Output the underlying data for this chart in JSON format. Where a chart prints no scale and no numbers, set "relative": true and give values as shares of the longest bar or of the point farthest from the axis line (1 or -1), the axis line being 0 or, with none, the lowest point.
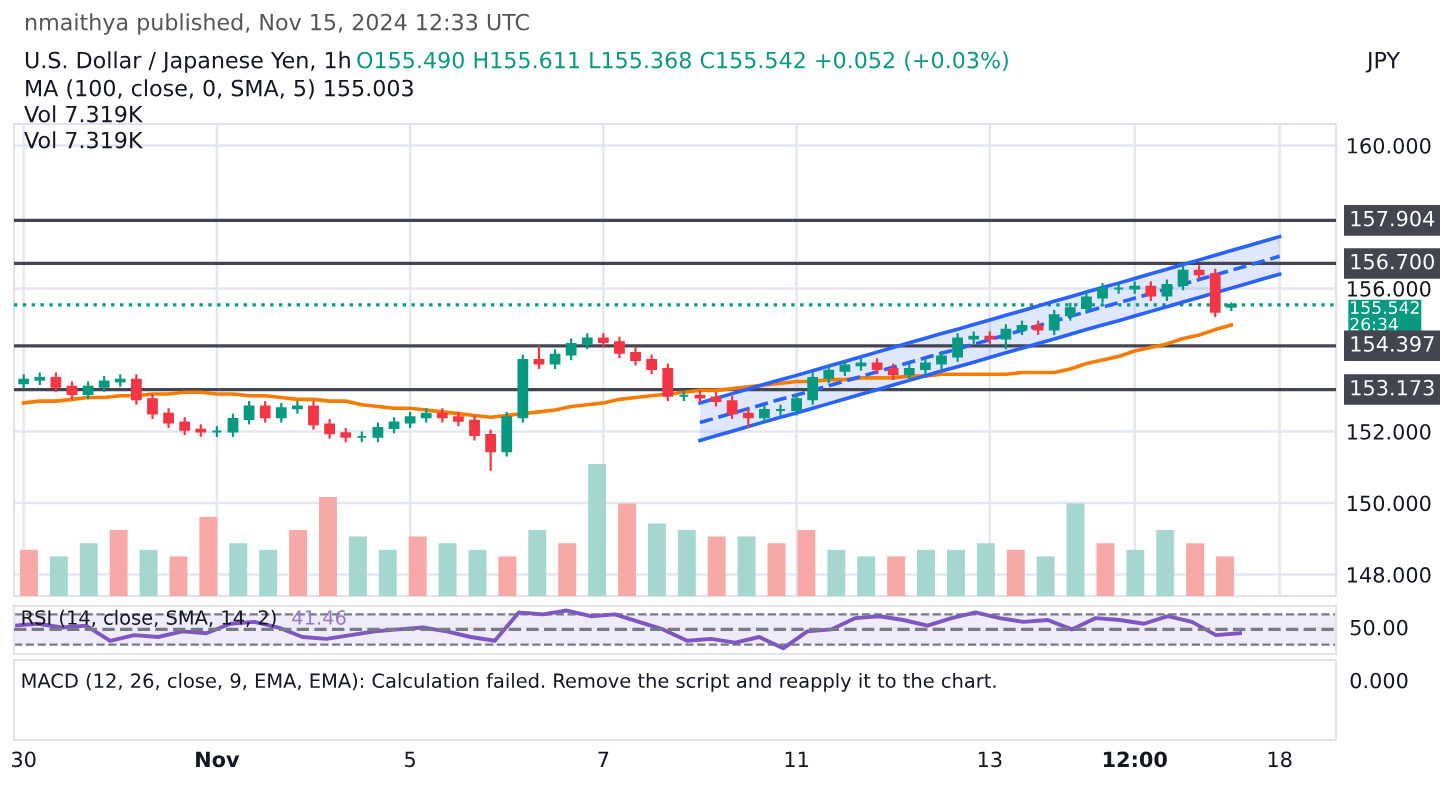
{
  "chart_data": [
    {
      "type": "candlestick",
      "title": "U.S. Dollar / Japanese Yen, 1h",
      "annotations": [
        "nmaithya published, Nov 15, 2024 12:33 UTC",
        "O155.490 H155.611 L155.368 C155.542 +0.052 (+0.03%)",
        "MA (100, close, 0, SMA, 5) 155.003",
        "Vol 7.319K",
        "Vol 7.319K",
        "JPY"
      ],
      "categories": [
        "30",
        null,
        null,
        null,
        null,
        null,
        null,
        null,
        null,
        null,
        null,
        null,
        "Nov",
        null,
        null,
        null,
        null,
        null,
        null,
        null,
        null,
        null,
        null,
        null,
        "5",
        null,
        null,
        null,
        null,
        null,
        null,
        null,
        null,
        null,
        null,
        null,
        "7",
        null,
        null,
        null,
        null,
        null,
        null,
        null,
        null,
        null,
        null,
        null,
        "11",
        null,
        null,
        null,
        null,
        null,
        null,
        null,
        null,
        null,
        null,
        null,
        "13",
        null,
        null,
        null,
        null,
        null,
        null,
        null,
        null,
        "12:00",
        null,
        null,
        null,
        null,
        null,
        null,
        null,
        null,
        "18",
        null,
        null,
        null
      ],
      "ohlc": [
        [
          153.35,
          153.6,
          153.2,
          153.45
        ],
        [
          153.45,
          153.65,
          153.3,
          153.5
        ],
        [
          153.5,
          153.65,
          153.1,
          153.25
        ],
        [
          153.25,
          153.4,
          152.9,
          153.05
        ],
        [
          153.05,
          153.4,
          152.9,
          153.25
        ],
        [
          153.25,
          153.55,
          153.1,
          153.4
        ],
        [
          153.4,
          153.6,
          153.25,
          153.45
        ],
        [
          153.45,
          153.6,
          152.75,
          152.9
        ],
        [
          152.9,
          153.05,
          152.35,
          152.5
        ],
        [
          152.5,
          152.65,
          152.1,
          152.25
        ],
        [
          152.25,
          152.4,
          151.9,
          152.05
        ],
        [
          152.05,
          152.2,
          151.85,
          152.0
        ],
        [
          152.0,
          152.15,
          151.85,
          152.0
        ],
        [
          152.0,
          152.5,
          151.85,
          152.35
        ],
        [
          152.35,
          152.85,
          152.2,
          152.7
        ],
        [
          152.7,
          152.85,
          152.25,
          152.4
        ],
        [
          152.4,
          152.8,
          152.25,
          152.65
        ],
        [
          152.65,
          152.85,
          152.5,
          152.7
        ],
        [
          152.7,
          152.85,
          152.05,
          152.2
        ],
        [
          152.2,
          152.35,
          151.8,
          151.95
        ],
        [
          151.95,
          152.1,
          151.7,
          151.85
        ],
        [
          151.85,
          152.0,
          151.7,
          151.85
        ],
        [
          151.85,
          152.25,
          151.7,
          152.1
        ],
        [
          152.1,
          152.4,
          151.95,
          152.25
        ],
        [
          152.25,
          152.55,
          152.1,
          152.4
        ],
        [
          152.4,
          152.65,
          152.25,
          152.5
        ],
        [
          152.5,
          152.65,
          152.25,
          152.4
        ],
        [
          152.4,
          152.55,
          152.15,
          152.3
        ],
        [
          152.3,
          152.45,
          151.75,
          151.9
        ],
        [
          151.9,
          152.05,
          150.9,
          151.45
        ],
        [
          151.45,
          152.55,
          151.3,
          152.4
        ],
        [
          152.4,
          154.15,
          152.25,
          154.0
        ],
        [
          154.0,
          154.4,
          153.75,
          153.9
        ],
        [
          153.9,
          154.3,
          153.75,
          154.15
        ],
        [
          154.15,
          154.6,
          154.0,
          154.45
        ],
        [
          154.45,
          154.75,
          154.3,
          154.6
        ],
        [
          154.6,
          154.75,
          154.35,
          154.5
        ],
        [
          154.5,
          154.65,
          154.05,
          154.2
        ],
        [
          154.2,
          154.35,
          153.85,
          154.0
        ],
        [
          154.0,
          154.15,
          153.6,
          153.75
        ],
        [
          153.75,
          153.9,
          152.85,
          153.0
        ],
        [
          153.0,
          153.15,
          152.85,
          153.0
        ],
        [
          153.0,
          153.15,
          152.8,
          152.95
        ],
        [
          152.95,
          153.1,
          152.7,
          152.85
        ],
        [
          152.85,
          153.0,
          152.35,
          152.5
        ],
        [
          152.5,
          152.65,
          152.1,
          152.4
        ],
        [
          152.4,
          152.75,
          152.25,
          152.6
        ],
        [
          152.6,
          152.75,
          152.45,
          152.6
        ],
        [
          152.6,
          153.05,
          152.45,
          152.9
        ],
        [
          152.9,
          153.65,
          152.75,
          153.5
        ],
        [
          153.5,
          153.85,
          153.35,
          153.7
        ],
        [
          153.7,
          154.0,
          153.55,
          153.85
        ],
        [
          153.85,
          154.05,
          153.7,
          153.9
        ],
        [
          153.9,
          154.05,
          153.6,
          153.75
        ],
        [
          153.75,
          153.9,
          153.45,
          153.6
        ],
        [
          153.6,
          153.9,
          153.45,
          153.75
        ],
        [
          153.75,
          154.05,
          153.6,
          153.9
        ],
        [
          153.9,
          154.25,
          153.75,
          154.1
        ],
        [
          154.1,
          154.75,
          153.95,
          154.6
        ],
        [
          154.6,
          154.8,
          154.45,
          154.65
        ],
        [
          154.65,
          154.8,
          154.45,
          154.6
        ],
        [
          154.6,
          155.0,
          154.3,
          154.85
        ],
        [
          154.85,
          155.1,
          154.7,
          154.95
        ],
        [
          154.95,
          155.1,
          154.7,
          154.85
        ],
        [
          154.85,
          155.4,
          154.7,
          155.25
        ],
        [
          155.25,
          155.6,
          155.1,
          155.45
        ],
        [
          155.45,
          155.9,
          155.3,
          155.75
        ],
        [
          155.75,
          156.15,
          155.6,
          156.0
        ],
        [
          156.0,
          156.15,
          155.85,
          156.0
        ],
        [
          156.0,
          156.2,
          155.85,
          156.05
        ],
        [
          156.05,
          156.2,
          155.65,
          155.8
        ],
        [
          155.8,
          156.25,
          155.65,
          156.1
        ],
        [
          156.1,
          156.65,
          155.95,
          156.5
        ],
        [
          156.5,
          156.65,
          156.25,
          156.4
        ],
        [
          156.4,
          156.55,
          155.2,
          155.35
        ],
        [
          155.49,
          155.611,
          155.368,
          155.542
        ],
        null,
        null,
        null,
        null,
        null,
        null
      ],
      "series": [
        {
          "type": "line",
          "color": "#f57c00",
          "values": [
            152.8,
            152.85,
            152.85,
            152.9,
            152.95,
            152.95,
            153.0,
            153.0,
            153.05,
            153.05,
            153.1,
            153.1,
            153.05,
            153.05,
            153.0,
            153.0,
            152.95,
            152.9,
            152.9,
            152.85,
            152.85,
            152.75,
            152.7,
            152.65,
            152.65,
            152.6,
            152.55,
            152.5,
            152.45,
            152.4,
            152.45,
            152.5,
            152.55,
            152.6,
            152.7,
            152.75,
            152.8,
            152.9,
            152.95,
            153.0,
            153.05,
            153.1,
            153.15,
            153.15,
            153.2,
            153.25,
            153.3,
            153.35,
            153.4,
            153.4,
            153.45,
            153.45,
            153.5,
            153.5,
            153.5,
            153.55,
            153.55,
            153.6,
            153.6,
            153.6,
            153.6,
            153.6,
            153.65,
            153.65,
            153.65,
            153.75,
            153.9,
            154.0,
            154.1,
            154.25,
            154.35,
            154.45,
            154.6,
            154.7,
            154.85,
            154.98,
            null,
            null,
            null,
            null,
            null,
            null
          ]
        },
        {
          "type": "line",
          "color": "#2962ff",
          "line_style": "dashed",
          "values": [
            null,
            null,
            null,
            null,
            null,
            null,
            null,
            null,
            null,
            null,
            null,
            null,
            null,
            null,
            null,
            null,
            null,
            null,
            null,
            null,
            null,
            null,
            null,
            null,
            null,
            null,
            null,
            null,
            null,
            null,
            null,
            null,
            null,
            null,
            null,
            null,
            null,
            null,
            null,
            null,
            null,
            null,
            152.25,
            152.38,
            152.51,
            152.64,
            152.77,
            152.9,
            153.02,
            153.15,
            153.28,
            153.41,
            153.54,
            153.67,
            153.8,
            153.93,
            154.06,
            154.19,
            154.31,
            154.44,
            154.57,
            154.7,
            154.83,
            154.96,
            155.09,
            155.22,
            155.35,
            155.48,
            155.6,
            155.73,
            155.86,
            155.99,
            156.12,
            156.25,
            156.38,
            156.51,
            156.64,
            156.77,
            156.9,
            null,
            null,
            null
          ],
          "lower": [
            null,
            null,
            null,
            null,
            null,
            null,
            null,
            null,
            null,
            null,
            null,
            null,
            null,
            null,
            null,
            null,
            null,
            null,
            null,
            null,
            null,
            null,
            null,
            null,
            null,
            null,
            null,
            null,
            null,
            null,
            null,
            null,
            null,
            null,
            null,
            null,
            null,
            null,
            null,
            null,
            null,
            null,
            151.75,
            151.88,
            152.01,
            152.14,
            152.27,
            152.4,
            152.52,
            152.65,
            152.78,
            152.91,
            153.04,
            153.17,
            153.3,
            153.43,
            153.56,
            153.69,
            153.81,
            153.94,
            154.07,
            154.2,
            154.33,
            154.46,
            154.59,
            154.72,
            154.85,
            154.98,
            155.1,
            155.23,
            155.36,
            155.49,
            155.62,
            155.75,
            155.88,
            156.01,
            156.14,
            156.27,
            156.4,
            null,
            null,
            null
          ],
          "upper": [
            null,
            null,
            null,
            null,
            null,
            null,
            null,
            null,
            null,
            null,
            null,
            null,
            null,
            null,
            null,
            null,
            null,
            null,
            null,
            null,
            null,
            null,
            null,
            null,
            null,
            null,
            null,
            null,
            null,
            null,
            null,
            null,
            null,
            null,
            null,
            null,
            null,
            null,
            null,
            null,
            null,
            null,
            152.8,
            152.93,
            153.06,
            153.19,
            153.32,
            153.45,
            153.57,
            153.7,
            153.83,
            153.96,
            154.09,
            154.22,
            154.35,
            154.48,
            154.61,
            154.74,
            154.86,
            154.99,
            155.12,
            155.25,
            155.38,
            155.51,
            155.64,
            155.77,
            155.9,
            156.03,
            156.15,
            156.28,
            156.41,
            156.54,
            156.67,
            156.8,
            156.93,
            157.06,
            157.19,
            157.32,
            157.45,
            null,
            null,
            null
          ]
        },
        {
          "type": "line",
          "color": "#2962ff",
          "line_style": "solid",
          "values": [
            null,
            null,
            null,
            null,
            null,
            null,
            null,
            null,
            null,
            null,
            null,
            null,
            null,
            null,
            null,
            null,
            null,
            null,
            null,
            null,
            null,
            null,
            null,
            null,
            null,
            null,
            null,
            null,
            null,
            null,
            null,
            null,
            null,
            null,
            null,
            null,
            null,
            null,
            null,
            null,
            null,
            null,
            151.75,
            151.88,
            152.01,
            152.14,
            152.27,
            152.4,
            152.52,
            152.65,
            152.78,
            152.91,
            153.04,
            153.17,
            153.3,
            153.43,
            153.56,
            153.69,
            153.81,
            153.94,
            154.07,
            154.2,
            154.33,
            154.46,
            154.59,
            154.72,
            154.85,
            154.98,
            155.1,
            155.23,
            155.36,
            155.49,
            155.62,
            155.75,
            155.88,
            156.01,
            156.14,
            156.27,
            156.4,
            null,
            null,
            null
          ]
        },
        {
          "type": "line",
          "color": "#2962ff",
          "line_style": "solid",
          "values": [
            null,
            null,
            null,
            null,
            null,
            null,
            null,
            null,
            null,
            null,
            null,
            null,
            null,
            null,
            null,
            null,
            null,
            null,
            null,
            null,
            null,
            null,
            null,
            null,
            null,
            null,
            null,
            null,
            null,
            null,
            null,
            null,
            null,
            null,
            null,
            null,
            null,
            null,
            null,
            null,
            null,
            null,
            152.8,
            152.93,
            153.06,
            153.19,
            153.32,
            153.45,
            153.57,
            153.7,
            153.83,
            153.96,
            154.09,
            154.22,
            154.35,
            154.48,
            154.61,
            154.74,
            154.86,
            154.99,
            155.12,
            155.25,
            155.38,
            155.51,
            155.64,
            155.77,
            155.9,
            156.03,
            156.15,
            156.28,
            156.41,
            156.54,
            156.67,
            156.8,
            156.93,
            157.06,
            157.19,
            157.32,
            157.45,
            null,
            null,
            null
          ]
        }
      ],
      "ref_lines": [
        {
          "axis": "y",
          "value": 157.904,
          "label": "157.904",
          "color": "#434651"
        },
        {
          "axis": "y",
          "value": 156.7,
          "label": "156.700",
          "color": "#434651"
        },
        {
          "axis": "y",
          "value": 154.397,
          "label": "154.397",
          "color": "#434651"
        },
        {
          "axis": "y",
          "value": 153.173,
          "label": "153.173",
          "color": "#434651"
        },
        {
          "axis": "y",
          "value": 155.542,
          "label": "155.542\n26:34",
          "color": "#089981",
          "line_style": "dotted"
        }
      ],
      "ylim": [
        147.4,
        160.6
      ],
      "yticks": [
        {
          "value": 148,
          "label": "148.000"
        },
        {
          "value": 150,
          "label": "150.000"
        },
        {
          "value": 152,
          "label": "152.000"
        },
        {
          "value": 156,
          "label": "156.000"
        },
        {
          "value": 160,
          "label": "160.000"
        }
      ],
      "grid": true,
      "tick_labels": "y"
    },
    {
      "type": "bar",
      "relative": true,
      "categories": [
        null,
        null,
        null,
        null,
        null,
        null,
        null,
        null,
        null,
        null,
        null,
        null,
        null,
        null,
        null,
        null,
        null,
        null,
        null,
        null,
        null,
        null,
        null,
        null,
        null,
        null,
        null,
        null,
        null,
        null,
        null,
        null,
        null,
        null,
        null,
        null,
        null,
        null,
        null,
        null,
        null
      ],
      "values": [
        0.35,
        0.3,
        0.4,
        0.5,
        0.35,
        0.3,
        0.6,
        0.4,
        0.35,
        0.5,
        0.75,
        0.45,
        0.35,
        0.45,
        0.4,
        0.35,
        0.3,
        0.5,
        0.4,
        1.0,
        0.7,
        0.55,
        0.5,
        0.45,
        0.45,
        0.4,
        0.5,
        0.35,
        0.3,
        0.3,
        0.35,
        0.35,
        0.4,
        0.35,
        0.3,
        0.7,
        0.4,
        0.35,
        0.5,
        0.4,
        0.3
      ],
      "colors": [
        "#f7a9a7",
        "#a5d6d0",
        "#a5d6d0",
        "#f7a9a7",
        "#a5d6d0",
        "#f7a9a7",
        "#f7a9a7",
        "#a5d6d0",
        "#a5d6d0",
        "#f7a9a7",
        "#f7a9a7",
        "#a5d6d0",
        "#a5d6d0",
        "#f7a9a7",
        "#a5d6d0",
        "#a5d6d0",
        "#f7a9a7",
        "#a5d6d0",
        "#f7a9a7",
        "#a5d6d0",
        "#f7a9a7",
        "#a5d6d0",
        "#a5d6d0",
        "#f7a9a7",
        "#a5d6d0",
        "#f7a9a7",
        "#f7a9a7",
        "#a5d6d0",
        "#a5d6d0",
        "#f7a9a7",
        "#a5d6d0",
        "#a5d6d0",
        "#a5d6d0",
        "#f7a9a7",
        "#a5d6d0",
        "#a5d6d0",
        "#f7a9a7",
        "#a5d6d0",
        "#a5d6d0",
        "#f7a9a7",
        "#f7a9a7"
      ]
    },
    {
      "type": "line",
      "relative": true,
      "title": "RSI (14, close, SMA, 14, 2)",
      "annotations": [
        "41.46"
      ],
      "categories": [
        null,
        null,
        null,
        null,
        null,
        null,
        null,
        null,
        null,
        null,
        null,
        null,
        null,
        null,
        null,
        null,
        null,
        null,
        null,
        null,
        null,
        null,
        null,
        null,
        null,
        null,
        null,
        null,
        null,
        null,
        null,
        null,
        null,
        null,
        null,
        null,
        null,
        null,
        null,
        null,
        null,
        null,
        null,
        null,
        null,
        null,
        null,
        null,
        null,
        null,
        null,
        null
      ],
      "series": [
        {
          "color": "#7e57c2",
          "values": [
            0.6,
            0.65,
            0.55,
            0.6,
            0.2,
            0.35,
            0.3,
            0.45,
            0.4,
            0.65,
            0.7,
            0.55,
            0.3,
            0.25,
            0.35,
            0.45,
            0.5,
            0.55,
            0.45,
            0.3,
            0.2,
            0.95,
            0.9,
            1.0,
            0.85,
            0.9,
            0.7,
            0.5,
            0.2,
            0.25,
            0.15,
            0.3,
            0.0,
            0.45,
            0.5,
            0.8,
            0.85,
            0.75,
            0.6,
            0.8,
            0.95,
            0.8,
            0.7,
            0.75,
            0.5,
            0.8,
            0.75,
            0.65,
            0.85,
            0.7,
            0.35,
            0.4
          ]
        }
      ],
      "ref_lines": [
        {
          "axis": "y",
          "value": 0.5,
          "label": "50.00",
          "color": "#787b86",
          "line_style": "dashed"
        }
      ],
      "bands": [
        {
          "axis": "y",
          "from": 0.1,
          "to": 0.9,
          "color": "#7e57c2"
        }
      ]
    },
    {
      "type": "other",
      "annotations": [
        "MACD (12, 26, close, 9, EMA, EMA): Calculation failed. Remove the script and reapply it to the chart.",
        "0.000"
      ]
    }
  ]
}
